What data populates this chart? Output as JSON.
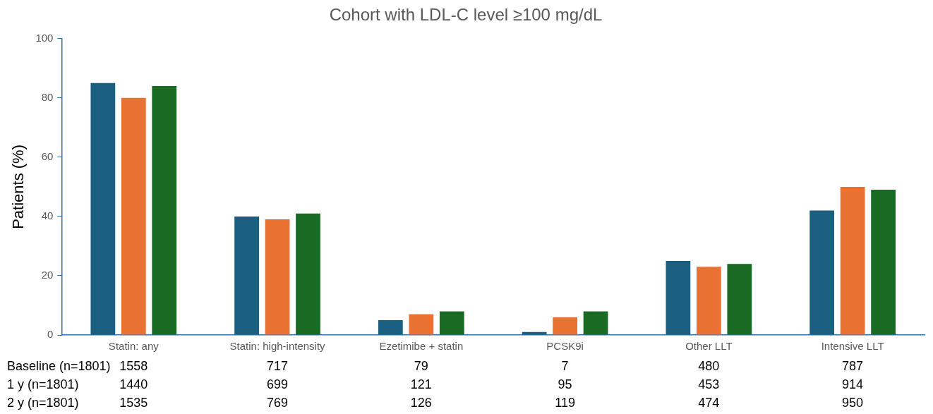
{
  "chart_data": {
    "type": "bar",
    "title": "Cohort with LDL-C level ≥100 mg/dL",
    "ylabel": "Patients (%)",
    "categories": [
      "Statin: any",
      "Statin: high-intensity",
      "Ezetimibe + statin",
      "PCSK9i",
      "Other LLT",
      "Intensive LLT"
    ],
    "series": [
      {
        "color": "#1a5e80",
        "values": [
          85,
          40,
          5,
          1,
          25,
          42
        ]
      },
      {
        "color": "#e97132",
        "values": [
          80,
          39,
          7,
          6,
          23,
          50
        ]
      },
      {
        "color": "#196b24",
        "values": [
          84,
          41,
          8,
          8,
          24,
          49
        ]
      }
    ],
    "annotations": [
      "Baseline (n=1801)",
      "1558",
      "717",
      "79",
      "7",
      "480",
      "787",
      "1 y (n=1801)",
      "1440",
      "699",
      "121",
      "95",
      "453",
      "914",
      "2 y (n=1801)",
      "1535",
      "769",
      "126",
      "119",
      "474",
      "950"
    ],
    "ylim": [
      0,
      100
    ],
    "yticks": [
      0,
      20,
      40,
      60,
      80,
      100
    ],
    "grid": false,
    "legend": false
  }
}
